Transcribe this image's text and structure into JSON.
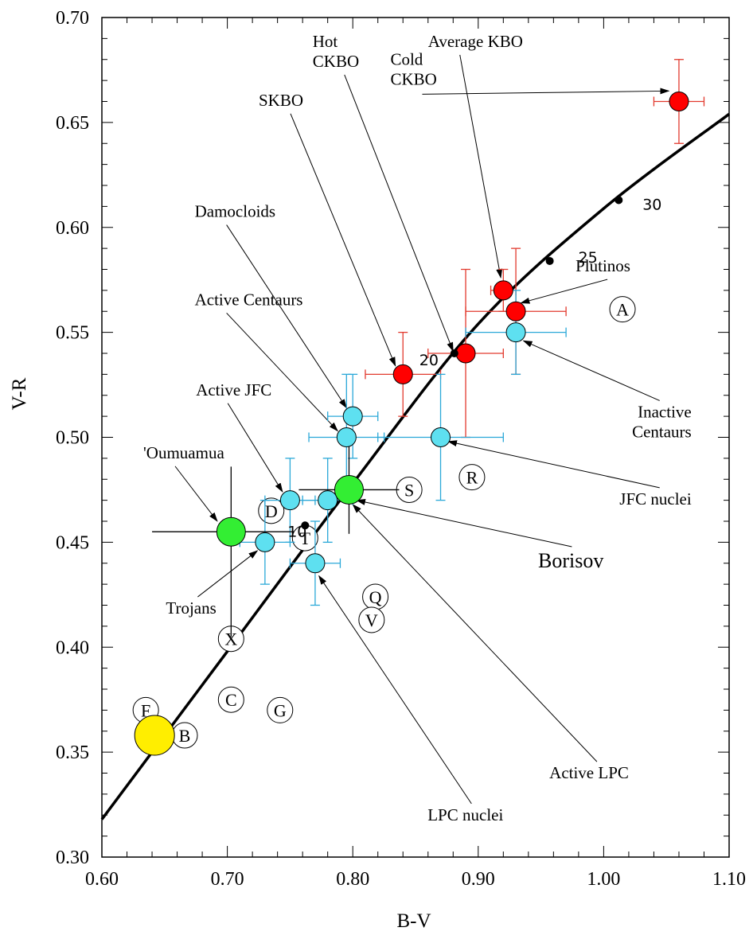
{
  "chart_data": {
    "type": "scatter",
    "title": "",
    "xlabel": "B-V",
    "ylabel": "V-R",
    "xlim": [
      0.6,
      1.1
    ],
    "ylim": [
      0.3,
      0.7
    ],
    "x_ticks": [
      0.6,
      0.7,
      0.8,
      0.9,
      1.0,
      1.1
    ],
    "x_tick_labels": [
      "0.60",
      "0.70",
      "0.80",
      "0.90",
      "1.00",
      "1.10"
    ],
    "y_ticks": [
      0.3,
      0.35,
      0.4,
      0.45,
      0.5,
      0.55,
      0.6,
      0.65,
      0.7
    ],
    "y_tick_labels": [
      "0.30",
      "0.35",
      "0.40",
      "0.45",
      "0.50",
      "0.55",
      "0.60",
      "0.65",
      "0.70"
    ],
    "grid": false,
    "legend": "none",
    "colors": {
      "kbo": "#ff0000",
      "kbo_error": "#e23a2e",
      "comet": "#5ee0f0",
      "comet_error": "#2aa8d8",
      "interstellar": "#33ee33",
      "sun": "#ffee00",
      "curve": "#000000"
    },
    "reddening_curve": {
      "x": [
        0.6,
        0.7,
        0.8,
        0.9,
        1.0,
        1.1
      ],
      "y": [
        0.318,
        0.398,
        0.478,
        0.554,
        0.609,
        0.654
      ],
      "markers": [
        {
          "label": "10",
          "x": 0.762,
          "y": 0.458
        },
        {
          "label": "20",
          "x": 0.881,
          "y": 0.54
        },
        {
          "label": "25",
          "x": 0.957,
          "y": 0.584
        },
        {
          "label": "30",
          "x": 1.012,
          "y": 0.613
        }
      ]
    },
    "series": [
      {
        "group": "kbo",
        "points": [
          {
            "x": 1.06,
            "y": 0.66,
            "xerr": 0.02,
            "yerr": 0.02
          },
          {
            "x": 0.92,
            "y": 0.57,
            "xerr": 0.01,
            "yerr": 0.01
          },
          {
            "x": 0.93,
            "y": 0.56,
            "xerr": 0.04,
            "yerr": 0.03
          },
          {
            "x": 0.89,
            "y": 0.54,
            "xerr": 0.03,
            "yerr": 0.04
          },
          {
            "x": 0.84,
            "y": 0.53,
            "xerr": 0.03,
            "yerr": 0.02
          }
        ]
      },
      {
        "group": "comet",
        "points": [
          {
            "x": 0.93,
            "y": 0.55,
            "xerr": 0.04,
            "yerr": 0.02
          },
          {
            "x": 0.8,
            "y": 0.51,
            "xerr": 0.02,
            "yerr": 0.02
          },
          {
            "x": 0.795,
            "y": 0.5,
            "xerr": 0.03,
            "yerr": 0.03
          },
          {
            "x": 0.87,
            "y": 0.5,
            "xerr": 0.05,
            "yerr": 0.03
          },
          {
            "x": 0.75,
            "y": 0.47,
            "xerr": 0.02,
            "yerr": 0.02
          },
          {
            "x": 0.78,
            "y": 0.47,
            "xerr": 0.02,
            "yerr": 0.02
          },
          {
            "x": 0.73,
            "y": 0.45,
            "xerr": 0.02,
            "yerr": 0.02
          },
          {
            "x": 0.77,
            "y": 0.44,
            "xerr": 0.02,
            "yerr": 0.02
          }
        ]
      },
      {
        "group": "interstellar",
        "points": [
          {
            "x": 0.703,
            "y": 0.455,
            "xerr_low": 0.063,
            "xerr_high": 0.05,
            "yerr_low": 0.05,
            "yerr_high": 0.031
          },
          {
            "x": 0.797,
            "y": 0.475,
            "xerr": 0.04,
            "yerr": 0.021
          }
        ]
      },
      {
        "group": "sun",
        "points": [
          {
            "x": 0.642,
            "y": 0.358
          }
        ]
      }
    ],
    "taxonomy_classes": [
      {
        "label": "A",
        "x": 1.015,
        "y": 0.561
      },
      {
        "label": "R",
        "x": 0.895,
        "y": 0.481
      },
      {
        "label": "S",
        "x": 0.845,
        "y": 0.475
      },
      {
        "label": "D",
        "x": 0.735,
        "y": 0.465
      },
      {
        "label": "T",
        "x": 0.762,
        "y": 0.452
      },
      {
        "label": "Q",
        "x": 0.818,
        "y": 0.424
      },
      {
        "label": "V",
        "x": 0.815,
        "y": 0.413
      },
      {
        "label": "X",
        "x": 0.703,
        "y": 0.404
      },
      {
        "label": "C",
        "x": 0.703,
        "y": 0.375
      },
      {
        "label": "G",
        "x": 0.742,
        "y": 0.37
      },
      {
        "label": "F",
        "x": 0.635,
        "y": 0.37
      },
      {
        "label": "B",
        "x": 0.666,
        "y": 0.358
      }
    ],
    "annotations": [
      {
        "label": "Cold\nCKBO",
        "text_x": 0.83,
        "text_y": 0.6775,
        "target": [
          1.052,
          0.665
        ],
        "arrow": true,
        "font": "serif",
        "align": "start"
      },
      {
        "label": "Average KBO",
        "text_x": 0.86,
        "text_y": 0.686,
        "target": [
          0.918,
          0.576
        ],
        "arrow": true,
        "font": "serif",
        "align": "start"
      },
      {
        "label": "Hot\nCKBO",
        "text_x": 0.768,
        "text_y": 0.686,
        "target": [
          0.88,
          0.541
        ],
        "arrow": true,
        "font": "serif",
        "align": "start"
      },
      {
        "label": "SKBO",
        "text_x": 0.725,
        "text_y": 0.658,
        "target": [
          0.834,
          0.534
        ],
        "arrow": true,
        "font": "serif",
        "align": "start"
      },
      {
        "label": "Damocloids",
        "text_x": 0.674,
        "text_y": 0.605,
        "target": [
          0.795,
          0.514
        ],
        "arrow": true,
        "font": "serif",
        "align": "start"
      },
      {
        "label": "Active Centaurs",
        "text_x": 0.674,
        "text_y": 0.563,
        "target": [
          0.788,
          0.503
        ],
        "arrow": true,
        "font": "serif",
        "align": "start"
      },
      {
        "label": "Active JFC",
        "text_x": 0.675,
        "text_y": 0.52,
        "target": [
          0.744,
          0.474
        ],
        "arrow": true,
        "font": "serif",
        "align": "start"
      },
      {
        "label": "'Oumuamua",
        "text_x": 0.633,
        "text_y": 0.49,
        "target": [
          0.692,
          0.46
        ],
        "arrow": true,
        "font": "serif",
        "align": "start"
      },
      {
        "label": "Trojans",
        "text_x": 0.651,
        "text_y": 0.416,
        "target": [
          0.724,
          0.446
        ],
        "arrow": true,
        "font": "serif",
        "align": "start"
      },
      {
        "label": "Plutinos",
        "text_x": 0.9776,
        "text_y": 0.579,
        "target": [
          0.934,
          0.564
        ],
        "arrow": true,
        "font": "serif",
        "align": "start"
      },
      {
        "label": "Inactive\nCentaurs",
        "text_x": 1.07,
        "text_y": 0.5095,
        "target": [
          0.936,
          0.546
        ],
        "arrow": true,
        "font": "serif",
        "align": "end"
      },
      {
        "label": "JFC nuclei",
        "text_x": 1.07,
        "text_y": 0.468,
        "target": [
          0.876,
          0.498
        ],
        "arrow": true,
        "font": "serif",
        "align": "end"
      },
      {
        "label": "Borisov",
        "text_x": 1.0,
        "text_y": 0.438,
        "target": [
          0.803,
          0.47
        ],
        "arrow": true,
        "font": "serif_large",
        "align": "end"
      },
      {
        "label": "Active LPC",
        "text_x": 1.02,
        "text_y": 0.3375,
        "target": [
          0.8,
          0.468
        ],
        "arrow": true,
        "font": "serif",
        "align": "end"
      },
      {
        "label": "LPC nuclei",
        "text_x": 0.92,
        "text_y": 0.3175,
        "target": [
          0.773,
          0.434
        ],
        "arrow": true,
        "font": "serif",
        "align": "end"
      }
    ]
  }
}
